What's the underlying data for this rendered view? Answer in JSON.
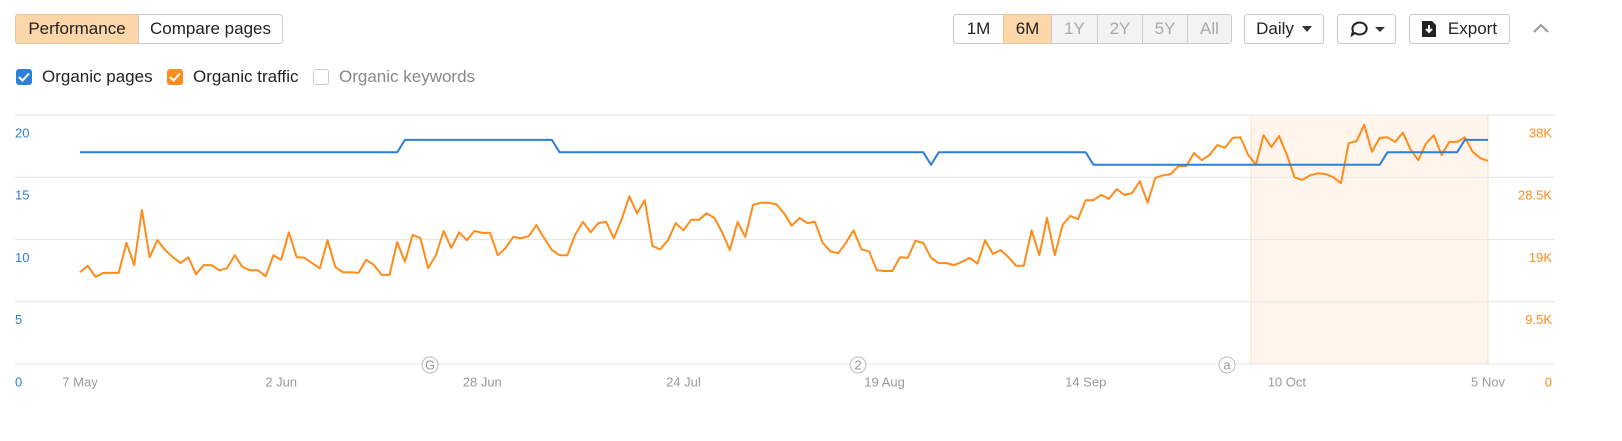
{
  "ui": {
    "tabs": [
      {
        "label": "Performance",
        "selected": true
      },
      {
        "label": "Compare pages",
        "selected": false
      }
    ],
    "ranges": [
      {
        "label": "1M",
        "selected": false,
        "disabled": false
      },
      {
        "label": "6M",
        "selected": true,
        "disabled": false
      },
      {
        "label": "1Y",
        "selected": false,
        "disabled": true
      },
      {
        "label": "2Y",
        "selected": false,
        "disabled": true
      },
      {
        "label": "5Y",
        "selected": false,
        "disabled": true
      },
      {
        "label": "All",
        "selected": false,
        "disabled": true
      }
    ],
    "interval": "Daily",
    "export": "Export",
    "unchecked_metric": "Organic keywords"
  },
  "chart_data": {
    "type": "line",
    "categories": [
      "7 May",
      null,
      null,
      null,
      null,
      null,
      null,
      null,
      null,
      null,
      null,
      null,
      null,
      null,
      null,
      null,
      null,
      null,
      null,
      null,
      null,
      null,
      null,
      null,
      null,
      null,
      "2 Jun",
      null,
      null,
      null,
      null,
      null,
      null,
      null,
      null,
      null,
      null,
      null,
      null,
      null,
      null,
      null,
      null,
      null,
      null,
      null,
      null,
      null,
      null,
      null,
      null,
      null,
      "28 Jun",
      null,
      null,
      null,
      null,
      null,
      null,
      null,
      null,
      null,
      null,
      null,
      null,
      null,
      null,
      null,
      null,
      null,
      null,
      null,
      null,
      null,
      null,
      null,
      null,
      null,
      "24 Jul",
      null,
      null,
      null,
      null,
      null,
      null,
      null,
      null,
      null,
      null,
      null,
      null,
      null,
      null,
      null,
      null,
      null,
      null,
      null,
      null,
      null,
      null,
      null,
      null,
      null,
      "19 Aug",
      null,
      null,
      null,
      null,
      null,
      null,
      null,
      null,
      null,
      null,
      null,
      null,
      null,
      null,
      null,
      null,
      null,
      null,
      null,
      null,
      null,
      null,
      null,
      null,
      null,
      "14 Sep",
      null,
      null,
      null,
      null,
      null,
      null,
      null,
      null,
      null,
      null,
      null,
      null,
      null,
      null,
      null,
      null,
      null,
      null,
      null,
      null,
      null,
      null,
      null,
      null,
      null,
      "10 Oct",
      null,
      null,
      null,
      null,
      null,
      null,
      null,
      null,
      null,
      null,
      null,
      null,
      null,
      null,
      null,
      null,
      null,
      null,
      null,
      null,
      null,
      null,
      null,
      null,
      null,
      "5 Nov"
    ],
    "series": [
      {
        "name": "Organic pages",
        "color": "#2e7fd6",
        "checked": true,
        "values": [
          17,
          17,
          17,
          17,
          17,
          17,
          17,
          17,
          17,
          17,
          17,
          17,
          17,
          17,
          17,
          17,
          17,
          17,
          17,
          17,
          17,
          17,
          17,
          17,
          17,
          17,
          17,
          17,
          17,
          17,
          17,
          17,
          17,
          17,
          17,
          17,
          17,
          17,
          17,
          17,
          17,
          17,
          18,
          18,
          18,
          18,
          18,
          18,
          18,
          18,
          18,
          18,
          18,
          18,
          18,
          18,
          18,
          18,
          18,
          18,
          18,
          18,
          17,
          17,
          17,
          17,
          17,
          17,
          17,
          17,
          17,
          17,
          17,
          17,
          17,
          17,
          17,
          17,
          17,
          17,
          17,
          17,
          17,
          17,
          17,
          17,
          17,
          17,
          17,
          17,
          17,
          17,
          17,
          17,
          17,
          17,
          17,
          17,
          17,
          17,
          17,
          17,
          17,
          17,
          17,
          17,
          17,
          17,
          17,
          17,
          16,
          17,
          17,
          17,
          17,
          17,
          17,
          17,
          17,
          17,
          17,
          17,
          17,
          17,
          17,
          17,
          17,
          17,
          17,
          17,
          17,
          16,
          16,
          16,
          16,
          16,
          16,
          16,
          16,
          16,
          16,
          16,
          16,
          16,
          16,
          16,
          16,
          16,
          16,
          16,
          16,
          16,
          16,
          16,
          16,
          16,
          16,
          16,
          16,
          16,
          16,
          16,
          16,
          16,
          16,
          16,
          16,
          16,
          16,
          17,
          17,
          17,
          17,
          17,
          17,
          17,
          17,
          17,
          17,
          18,
          18,
          18,
          18
        ]
      },
      {
        "name": "Organic traffic",
        "color": "#ff8c1a",
        "checked": true,
        "axis": "y2",
        "values": [
          14000,
          15000,
          13300,
          13900,
          13900,
          13900,
          18500,
          15100,
          23500,
          16300,
          18900,
          17400,
          16300,
          15400,
          16300,
          13700,
          15100,
          15100,
          14300,
          14600,
          16600,
          14800,
          14300,
          14300,
          13400,
          16600,
          15900,
          20100,
          16300,
          16200,
          15400,
          14600,
          18900,
          14800,
          14000,
          14000,
          13900,
          15900,
          15100,
          13600,
          13600,
          18600,
          15600,
          19700,
          19200,
          14600,
          16600,
          20300,
          17700,
          20100,
          18900,
          20300,
          20000,
          20000,
          16600,
          17700,
          19400,
          19200,
          19500,
          21200,
          19200,
          17400,
          16600,
          16600,
          19700,
          21700,
          20100,
          21500,
          21700,
          19200,
          22000,
          25600,
          23000,
          25000,
          18000,
          17500,
          18900,
          21500,
          20400,
          22000,
          22000,
          23000,
          22300,
          20100,
          17400,
          21700,
          19400,
          24300,
          24600,
          24600,
          24400,
          23000,
          21100,
          22300,
          21500,
          21700,
          18500,
          17200,
          16900,
          18500,
          20400,
          17500,
          17200,
          14300,
          14200,
          14200,
          16300,
          16200,
          18800,
          18500,
          16200,
          15400,
          15400,
          15100,
          15600,
          16200,
          15300,
          18900,
          16800,
          17400,
          16300,
          15000,
          15000,
          20400,
          16600,
          22300,
          16600,
          21200,
          22600,
          22100,
          25000,
          25000,
          25800,
          25200,
          26700,
          25800,
          26100,
          27900,
          24600,
          28400,
          28800,
          29000,
          30200,
          30200,
          32200,
          31100,
          31900,
          33400,
          33000,
          34500,
          34600,
          31900,
          30400,
          34900,
          33100,
          34800,
          31900,
          28500,
          28100,
          28800,
          29100,
          29000,
          28500,
          27600,
          33700,
          34000,
          36500,
          32400,
          34500,
          34600,
          33900,
          35300,
          32700,
          31100,
          33700,
          34900,
          31900,
          33900,
          33900,
          34600,
          32400,
          31400,
          31000
        ]
      }
    ],
    "ylim": [
      0,
      20
    ],
    "yticks": [
      0,
      5,
      10,
      15,
      20
    ],
    "y2lim": [
      0,
      38000
    ],
    "y2ticks": [
      0,
      {
        "value": 9500,
        "label": "9.5K"
      },
      {
        "value": 19000,
        "label": "19K"
      },
      {
        "value": 28500,
        "label": "28.5K"
      },
      {
        "value": 38000,
        "label": "38K"
      }
    ],
    "grid": true,
    "events": [
      "G",
      "2",
      "a"
    ]
  }
}
